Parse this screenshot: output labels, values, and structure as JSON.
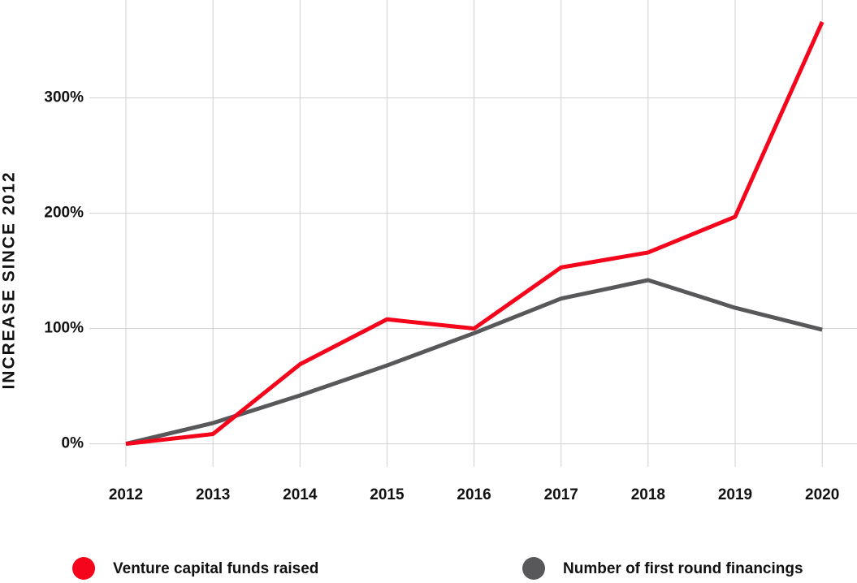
{
  "chart_data": {
    "type": "line",
    "y_label": "INCREASE SINCE 2012",
    "x": [
      2012,
      2013,
      2014,
      2015,
      2016,
      2017,
      2018,
      2019,
      2020
    ],
    "xlim": [
      2011.58,
      2020.4
    ],
    "xticks": [
      2012,
      2013,
      2014,
      2015,
      2016,
      2017,
      2018,
      2019,
      2020
    ],
    "ylim": [
      -20,
      385
    ],
    "yticks": [
      {
        "value": 0,
        "label": "0%"
      },
      {
        "value": 100,
        "label": "100%"
      },
      {
        "value": 200,
        "label": "200%"
      },
      {
        "value": 300,
        "label": "300%"
      }
    ],
    "grid": true,
    "legend": "bottom",
    "series": [
      {
        "name": "Venture capital funds raised",
        "color": "#f5051b",
        "values": [
          0,
          8.5,
          69,
          108,
          100,
          153,
          166,
          197,
          366
        ]
      },
      {
        "name": "Number of first round financings",
        "color": "#58585a",
        "values": [
          0,
          18,
          42,
          68,
          96,
          126,
          142,
          118,
          99
        ]
      }
    ]
  }
}
